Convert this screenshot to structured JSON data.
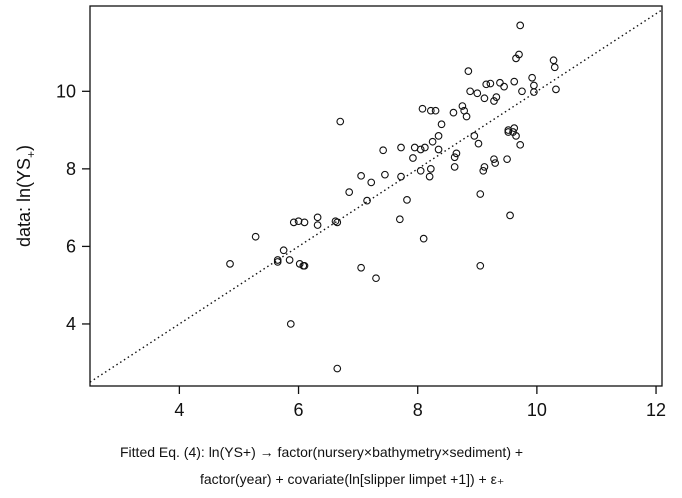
{
  "chart_data": {
    "type": "scatter",
    "title": "",
    "xlabel_line1": "Fitted Eq. (4): ln(YS+) → factor(nursery×bathymetry×sediment) +",
    "xlabel_line2": "factor(year) + covariate(ln[slipper limpet +1]) + ε₊",
    "ylabel_text": "data: ln(YS",
    "ylabel_sub": "+",
    "ylabel_close": ")",
    "xlim": [
      2.5,
      12.1
    ],
    "ylim": [
      2.4,
      12.2
    ],
    "xticks": [
      4,
      6,
      8,
      10,
      12
    ],
    "yticks": [
      4,
      6,
      8,
      10
    ],
    "grid": false,
    "reference_line": {
      "style": "dotted",
      "from": [
        2.5,
        2.5
      ],
      "to": [
        12.1,
        12.1
      ]
    },
    "points": [
      [
        4.85,
        5.55
      ],
      [
        5.28,
        6.25
      ],
      [
        5.65,
        5.6
      ],
      [
        5.65,
        5.65
      ],
      [
        5.75,
        5.9
      ],
      [
        5.85,
        5.65
      ],
      [
        5.87,
        4.0
      ],
      [
        5.92,
        6.62
      ],
      [
        6.0,
        6.65
      ],
      [
        6.02,
        5.55
      ],
      [
        6.1,
        6.62
      ],
      [
        6.1,
        5.5
      ],
      [
        6.08,
        5.5
      ],
      [
        6.32,
        6.55
      ],
      [
        6.32,
        6.75
      ],
      [
        6.62,
        6.65
      ],
      [
        6.65,
        6.62
      ],
      [
        6.65,
        2.85
      ],
      [
        6.7,
        9.22
      ],
      [
        6.85,
        7.4
      ],
      [
        7.05,
        5.45
      ],
      [
        7.05,
        7.82
      ],
      [
        7.15,
        7.18
      ],
      [
        7.22,
        7.65
      ],
      [
        7.3,
        5.18
      ],
      [
        7.42,
        8.48
      ],
      [
        7.45,
        7.85
      ],
      [
        7.7,
        6.7
      ],
      [
        7.72,
        7.8
      ],
      [
        7.72,
        8.55
      ],
      [
        7.82,
        7.2
      ],
      [
        7.92,
        8.28
      ],
      [
        7.95,
        8.55
      ],
      [
        8.05,
        7.95
      ],
      [
        8.05,
        8.5
      ],
      [
        8.08,
        9.55
      ],
      [
        8.12,
        8.55
      ],
      [
        8.1,
        6.2
      ],
      [
        8.2,
        7.8
      ],
      [
        8.22,
        8.0
      ],
      [
        8.22,
        9.5
      ],
      [
        8.25,
        8.7
      ],
      [
        8.3,
        9.5
      ],
      [
        8.35,
        8.85
      ],
      [
        8.35,
        8.5
      ],
      [
        8.4,
        9.15
      ],
      [
        8.6,
        9.45
      ],
      [
        8.62,
        8.3
      ],
      [
        8.62,
        8.05
      ],
      [
        8.65,
        8.4
      ],
      [
        8.75,
        9.62
      ],
      [
        8.78,
        9.5
      ],
      [
        8.82,
        9.35
      ],
      [
        8.85,
        10.52
      ],
      [
        8.88,
        10.0
      ],
      [
        8.95,
        8.85
      ],
      [
        9.0,
        9.95
      ],
      [
        9.02,
        8.65
      ],
      [
        9.05,
        5.5
      ],
      [
        9.05,
        7.35
      ],
      [
        9.1,
        7.95
      ],
      [
        9.12,
        8.05
      ],
      [
        9.15,
        10.18
      ],
      [
        9.22,
        10.2
      ],
      [
        9.28,
        9.75
      ],
      [
        9.28,
        8.25
      ],
      [
        9.3,
        8.15
      ],
      [
        9.32,
        9.85
      ],
      [
        9.38,
        10.22
      ],
      [
        9.45,
        10.12
      ],
      [
        9.5,
        8.25
      ],
      [
        9.52,
        8.95
      ],
      [
        9.52,
        9.0
      ],
      [
        9.55,
        6.8
      ],
      [
        9.6,
        8.95
      ],
      [
        9.62,
        9.05
      ],
      [
        9.62,
        10.25
      ],
      [
        9.65,
        8.85
      ],
      [
        9.65,
        10.85
      ],
      [
        9.7,
        10.95
      ],
      [
        9.72,
        11.7
      ],
      [
        9.72,
        8.62
      ],
      [
        9.75,
        10.0
      ],
      [
        9.92,
        10.35
      ],
      [
        9.95,
        10.15
      ],
      [
        9.95,
        9.98
      ],
      [
        10.28,
        10.8
      ],
      [
        10.3,
        10.62
      ],
      [
        10.32,
        10.05
      ],
      [
        9.12,
        9.82
      ]
    ]
  }
}
